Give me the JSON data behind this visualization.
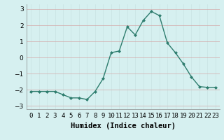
{
  "x": [
    0,
    1,
    2,
    3,
    4,
    5,
    6,
    7,
    8,
    9,
    10,
    11,
    12,
    13,
    14,
    15,
    16,
    17,
    18,
    19,
    20,
    21,
    22,
    23
  ],
  "y": [
    -2.1,
    -2.1,
    -2.1,
    -2.1,
    -2.3,
    -2.5,
    -2.5,
    -2.6,
    -2.1,
    -1.3,
    0.3,
    0.4,
    1.9,
    1.4,
    2.3,
    2.85,
    2.6,
    0.9,
    0.3,
    -0.4,
    -1.2,
    -1.8,
    -1.85,
    -1.85
  ],
  "line_color": "#2e7d6e",
  "marker": "D",
  "marker_size": 2.0,
  "bg_color": "#d6f0f0",
  "grid_color": "#c9e2e2",
  "xlabel": "Humidex (Indice chaleur)",
  "xlim": [
    -0.5,
    23.5
  ],
  "ylim": [
    -3.2,
    3.3
  ],
  "yticks": [
    -3,
    -2,
    -1,
    0,
    1,
    2,
    3
  ],
  "xtick_labels": [
    "0",
    "1",
    "2",
    "3",
    "4",
    "5",
    "6",
    "7",
    "8",
    "9",
    "10",
    "11",
    "12",
    "13",
    "14",
    "15",
    "16",
    "17",
    "18",
    "19",
    "20",
    "21",
    "22",
    "23"
  ],
  "xlabel_fontsize": 7.5,
  "tick_fontsize": 6.5
}
